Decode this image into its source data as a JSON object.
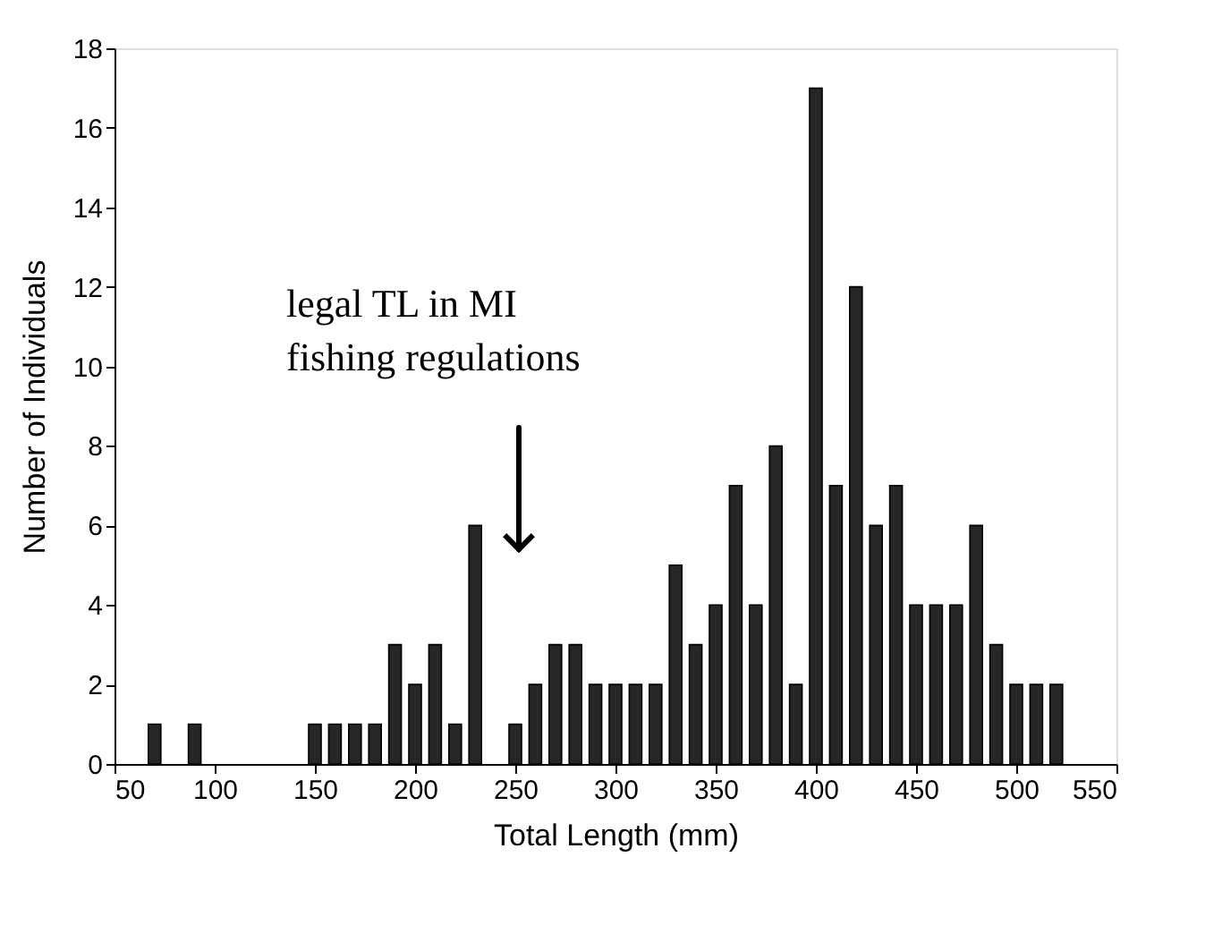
{
  "chart_data": {
    "type": "bar",
    "xlabel": "Total Length (mm)",
    "ylabel": "Number of Individuals",
    "x": [
      70,
      90,
      150,
      160,
      170,
      180,
      190,
      200,
      210,
      220,
      230,
      250,
      260,
      270,
      280,
      290,
      300,
      310,
      320,
      330,
      340,
      350,
      360,
      370,
      380,
      390,
      400,
      410,
      420,
      430,
      440,
      450,
      460,
      470,
      480,
      490,
      500,
      510,
      520
    ],
    "values": [
      1,
      1,
      1,
      1,
      1,
      1,
      3,
      2,
      3,
      1,
      6,
      1,
      2,
      3,
      3,
      2,
      2,
      2,
      2,
      5,
      3,
      4,
      7,
      4,
      8,
      2,
      17,
      7,
      12,
      6,
      7,
      4,
      4,
      4,
      6,
      3,
      2,
      2,
      2
    ],
    "color": "#262626",
    "xlim": [
      50,
      550
    ],
    "xticks": [
      50,
      100,
      150,
      200,
      250,
      300,
      350,
      400,
      450,
      500,
      550
    ],
    "ylim": [
      0,
      18
    ],
    "yticks": [
      0,
      2,
      4,
      6,
      8,
      10,
      12,
      14,
      16,
      18
    ],
    "grid": false,
    "annotations": [
      "legal TL in MI\nfishing regulations"
    ]
  }
}
